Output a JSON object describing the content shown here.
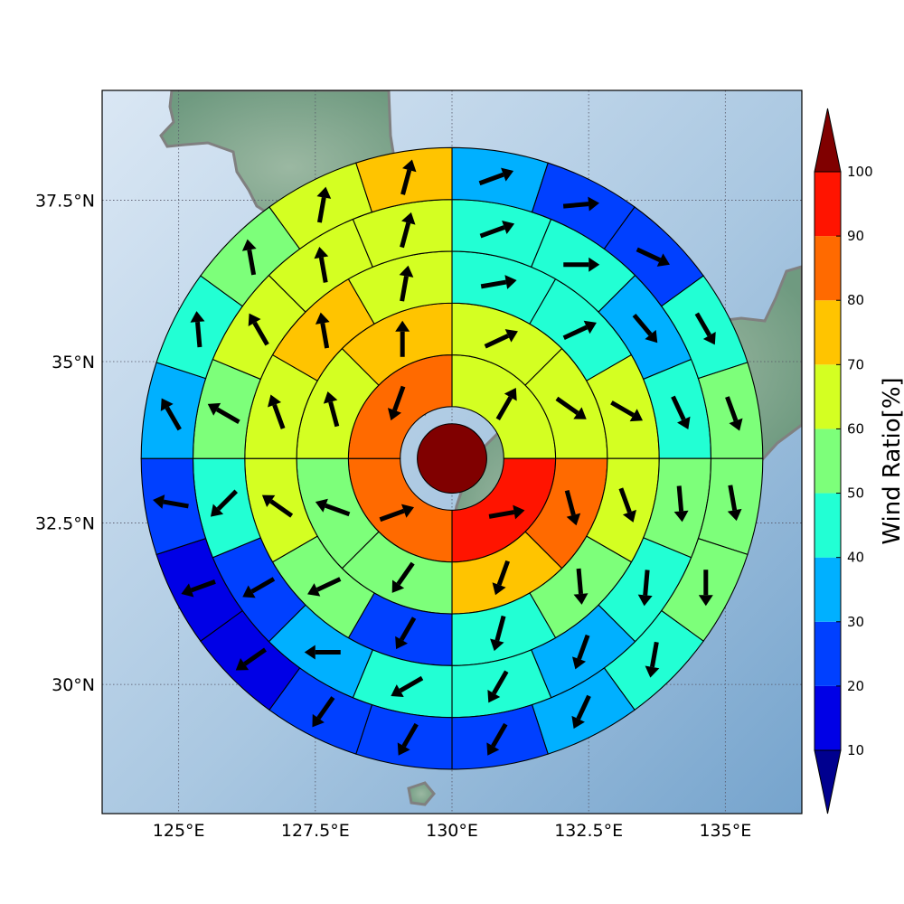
{
  "map": {
    "lon_ticks": [
      "125°E",
      "127.5°E",
      "130°E",
      "132.5°E",
      "135°E"
    ],
    "lat_ticks": [
      "37.5°N",
      "35°N",
      "32.5°N",
      "30°N"
    ],
    "lon_values": [
      125,
      127.5,
      130,
      132.5,
      135
    ],
    "lat_values": [
      37.5,
      35,
      32.5,
      30
    ],
    "extent": {
      "lon": [
        123.6,
        136.4
      ],
      "lat": [
        28.0,
        39.2
      ]
    },
    "center": {
      "lon": 130.0,
      "lat": 33.5
    },
    "ocean_colors": [
      "#d7e5f3",
      "#a6c5e0",
      "#7aa8d0"
    ],
    "land_color": "#7fa58c",
    "coast_color": "#808080",
    "grid": "dotted"
  },
  "colorbar": {
    "label": "Wind Ratio[%]",
    "ticks": [
      "10",
      "20",
      "30",
      "40",
      "50",
      "60",
      "70",
      "80",
      "90",
      "100"
    ],
    "bins": [
      {
        "from": 10,
        "to": 20,
        "color": "#0000e6"
      },
      {
        "from": 20,
        "to": 30,
        "color": "#0040ff"
      },
      {
        "from": 30,
        "to": 40,
        "color": "#00b0ff"
      },
      {
        "from": 40,
        "to": 50,
        "color": "#22ffd4"
      },
      {
        "from": 50,
        "to": 60,
        "color": "#7dff7a"
      },
      {
        "from": 60,
        "to": 70,
        "color": "#d4ff22"
      },
      {
        "from": 70,
        "to": 80,
        "color": "#ffc400"
      },
      {
        "from": 80,
        "to": 90,
        "color": "#ff6a00"
      },
      {
        "from": 90,
        "to": 100,
        "color": "#ff1400"
      }
    ],
    "under_color": "#00008f",
    "over_color": "#800000"
  },
  "chart_data": {
    "type": "polar-grid",
    "center_value": 100,
    "rings": [
      {
        "ring": 1,
        "sectors": 4,
        "values": [
          60,
          90,
          80,
          80
        ],
        "directions_deg": [
          30,
          80,
          70,
          200
        ]
      },
      {
        "ring": 2,
        "sectors": 8,
        "values": [
          60,
          60,
          80,
          70,
          50,
          50,
          60,
          70
        ],
        "directions_deg": [
          65,
          125,
          165,
          200,
          215,
          290,
          345,
          0
        ]
      },
      {
        "ring": 3,
        "sectors": 12,
        "values": [
          40,
          40,
          60,
          60,
          50,
          40,
          20,
          50,
          60,
          60,
          70,
          60
        ],
        "directions_deg": [
          80,
          65,
          120,
          160,
          175,
          195,
          210,
          245,
          305,
          340,
          350,
          10
        ]
      },
      {
        "ring": 4,
        "sectors": 16,
        "values": [
          40,
          40,
          30,
          40,
          50,
          40,
          30,
          40,
          40,
          30,
          20,
          40,
          50,
          60,
          60,
          60
        ],
        "directions_deg": [
          70,
          90,
          140,
          155,
          175,
          185,
          200,
          210,
          240,
          270,
          240,
          225,
          300,
          330,
          350,
          15
        ]
      },
      {
        "ring": 5,
        "sectors": 20,
        "values": [
          30,
          20,
          20,
          40,
          50,
          50,
          50,
          40,
          30,
          20,
          20,
          20,
          10,
          10,
          20,
          30,
          40,
          50,
          60,
          70
        ],
        "directions_deg": [
          70,
          85,
          115,
          150,
          160,
          170,
          180,
          190,
          205,
          210,
          210,
          215,
          235,
          250,
          280,
          330,
          355,
          350,
          10,
          15
        ]
      }
    ]
  }
}
